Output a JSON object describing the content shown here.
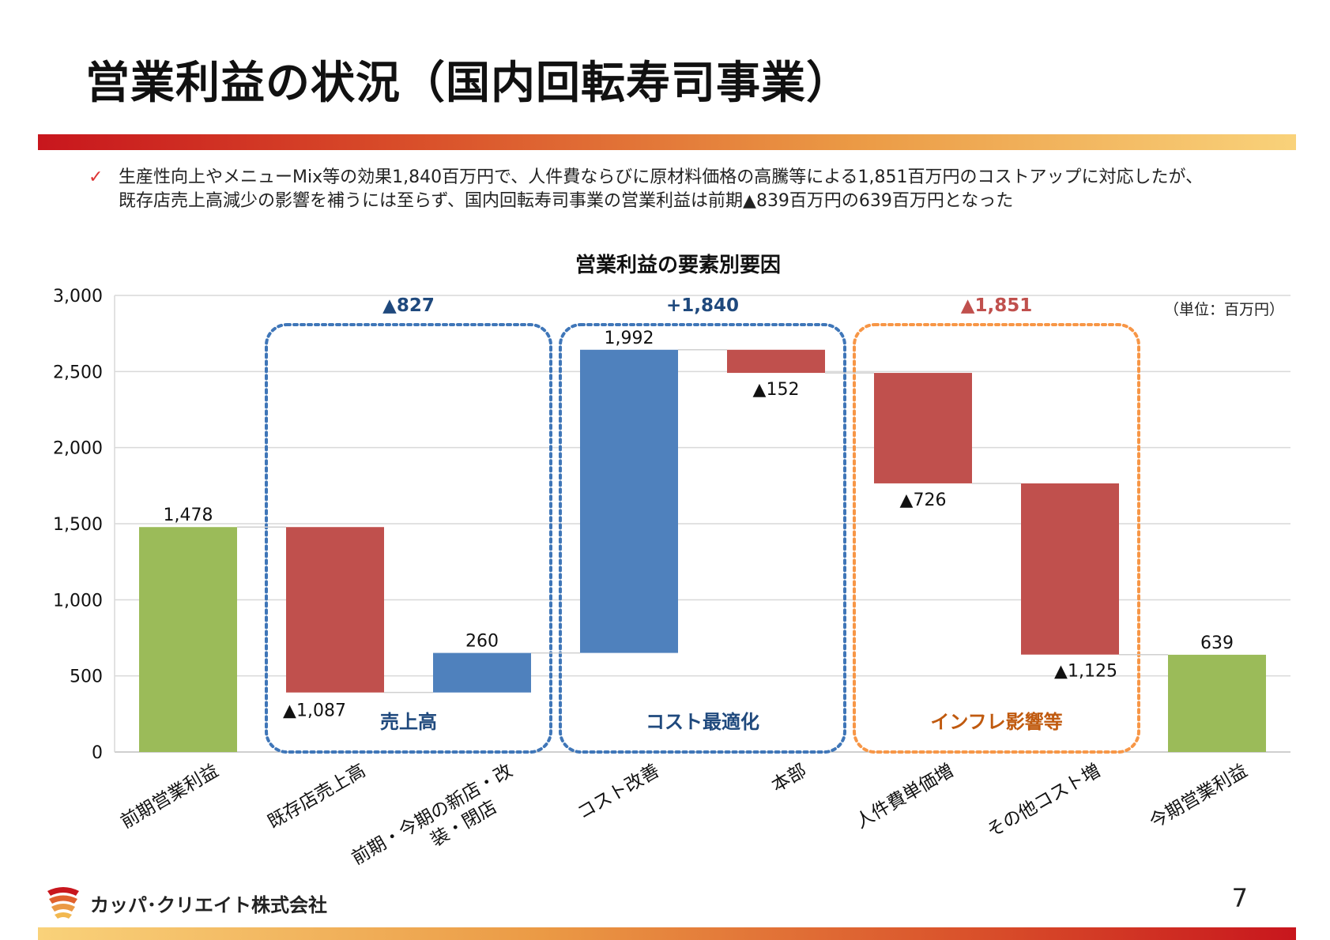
{
  "title": "営業利益の状況（国内回転寿司事業）",
  "summary": {
    "line1": "生産性向上やメニューMix等の効果1,840百万円で、人件費ならびに原材料価格の高騰等による1,851百万円のコストアップに対応したが、",
    "line2": "既存店売上高減少の影響を補うには至らず、国内回転寿司事業の営業利益は前期▲839百万円の639百万円となった"
  },
  "colors": {
    "total": "#9bbb59",
    "increase": "#4f81bd",
    "decrease": "#c0504d",
    "group_blue": "#3f76b8",
    "group_orange": "#f79646",
    "group_blue_text": "#1f497d",
    "group_orange_text": "#c05a0f",
    "group_red_text": "#c0504d",
    "grid": "#d9d9d9"
  },
  "chart_data": {
    "type": "waterfall",
    "title": "営業利益の要素別要因",
    "unit": "（単位：百万円）",
    "ylim": [
      0,
      3000
    ],
    "yticks": [
      0,
      500,
      1000,
      1500,
      2000,
      2500,
      3000
    ],
    "ytick_labels": [
      "0",
      "500",
      "1,000",
      "1,500",
      "2,000",
      "2,500",
      "3,000"
    ],
    "grid": true,
    "bars": [
      {
        "category": "前期営業利益",
        "label_lines": [
          "前期営業利益"
        ],
        "kind": "total",
        "start": 0,
        "end": 1478,
        "value_label": "1,478"
      },
      {
        "category": "既存店売上高",
        "label_lines": [
          "既存店売上高"
        ],
        "kind": "decrease",
        "start": 1478,
        "end": 391,
        "value_label": "▲1,087"
      },
      {
        "category": "前期・今期の新店・改装・閉店",
        "label_lines": [
          "前期・今期の新店・改",
          "装・閉店"
        ],
        "kind": "increase",
        "start": 391,
        "end": 651,
        "value_label": "260"
      },
      {
        "category": "コスト改善",
        "label_lines": [
          "コスト改善"
        ],
        "kind": "increase",
        "start": 651,
        "end": 2643,
        "value_label": "1,992"
      },
      {
        "category": "本部",
        "label_lines": [
          "本部"
        ],
        "kind": "decrease",
        "start": 2643,
        "end": 2491,
        "value_label": "▲152"
      },
      {
        "category": "人件費単価増",
        "label_lines": [
          "人件費単価増"
        ],
        "kind": "decrease",
        "start": 2491,
        "end": 1765,
        "value_label": "▲726"
      },
      {
        "category": "その他コスト増",
        "label_lines": [
          "その他コスト増"
        ],
        "kind": "decrease",
        "start": 1765,
        "end": 640,
        "value_label": "▲1,125"
      },
      {
        "category": "今期営業利益",
        "label_lines": [
          "今期営業利益"
        ],
        "kind": "total",
        "start": 0,
        "end": 639,
        "value_label": "639"
      }
    ],
    "groups": [
      {
        "name": "売上高",
        "total_label": "▲827",
        "bars": [
          1,
          2
        ],
        "style": "blue"
      },
      {
        "name": "コスト最適化",
        "total_label": "+1,840",
        "bars": [
          3,
          4
        ],
        "style": "blue"
      },
      {
        "name": "インフレ影響等",
        "total_label": "▲1,851",
        "bars": [
          5,
          6
        ],
        "style": "orange"
      }
    ]
  },
  "footer": {
    "company": "カッパ･クリエイト株式会社",
    "page_number": "7"
  }
}
